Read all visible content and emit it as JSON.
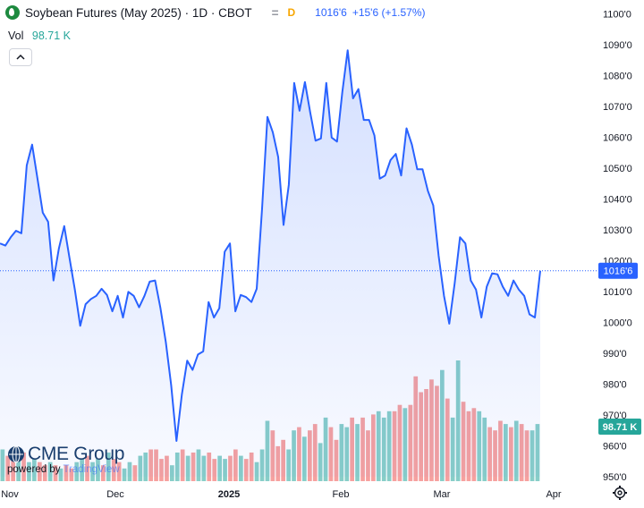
{
  "header": {
    "title": "Soybean Futures (May 2025) · 1D · CBOT",
    "dash": "=",
    "delay_badge": "D",
    "last_price": "1016'6",
    "change": "+15'6 (+1.57%)",
    "collapse_icon": "chevron-up-icon"
  },
  "volume": {
    "label": "Vol",
    "value": "98.71 K",
    "badge": "98.71 K"
  },
  "branding": {
    "logo_icon": "cme-globe-icon",
    "name": "CME Group",
    "powered_by": "powered by ",
    "tv_name": "TradingView",
    "settings_icon": "gear-icon"
  },
  "colors": {
    "line": "#2962ff",
    "fill": "#2962ff",
    "vol_up": "#26a69a",
    "vol_down": "#ef5350",
    "price_badge": "#2962ff",
    "vol_badge": "#26a69a"
  },
  "chart_data": {
    "type": "area",
    "x_tick_labels": [
      "Nov",
      "Dec",
      "2025",
      "Feb",
      "Mar",
      "Apr"
    ],
    "y_tick_labels": [
      "950'0",
      "960'0",
      "970'0",
      "980'0",
      "990'0",
      "1000'0",
      "1010'0",
      "1020'0",
      "1030'0",
      "1040'0",
      "1050'0",
      "1060'0",
      "1070'0",
      "1080'0",
      "1090'0",
      "1100'0"
    ],
    "y_ticks": [
      950,
      960,
      970,
      980,
      990,
      1000,
      1010,
      1020,
      1030,
      1040,
      1050,
      1060,
      1070,
      1080,
      1090,
      1100
    ],
    "ylim": [
      950,
      1101
    ],
    "current_price": 1016.75,
    "current_price_label": "1016'6",
    "grid": false,
    "series": [
      {
        "values": [
          1025.6,
          1024.9,
          1027.6,
          1029.7,
          1028.9,
          1050.9,
          1057.6,
          1046.6,
          1035.6,
          1032.6,
          1013.6,
          1023.9,
          1031.2,
          1020.9,
          1010.6,
          998.9,
          1005.9,
          1007.6,
          1008.6,
          1010.9,
          1008.9,
          1003.6,
          1008.6,
          1001.6,
          1009.9,
          1008.6,
          1004.9,
          1008.6,
          1013.2,
          1013.6,
          1004.6,
          993.6,
          979.6,
          961.6,
          976.6,
          987.6,
          984.6,
          989.6,
          990.6,
          1006.6,
          1001.6,
          1004.6,
          1022.9,
          1025.6,
          1003.6,
          1008.9,
          1008.2,
          1006.6,
          1010.9,
          1036.9,
          1066.6,
          1061.6,
          1053.6,
          1031.6,
          1044.6,
          1077.6,
          1068.6,
          1077.9,
          1067.9,
          1058.9,
          1059.6,
          1077.6,
          1059.9,
          1058.6,
          1074.6,
          1088.2,
          1072.6,
          1075.6,
          1065.6,
          1065.6,
          1060.6,
          1046.6,
          1047.6,
          1052.6,
          1054.6,
          1047.6,
          1062.9,
          1057.6,
          1049.6,
          1049.6,
          1042.6,
          1037.9,
          1021.6,
          1008.6,
          999.6,
          1012.6,
          1027.6,
          1025.6,
          1013.6,
          1010.6,
          1001.6,
          1011.6,
          1015.9,
          1015.6,
          1011.6,
          1008.6,
          1013.6,
          1010.6,
          1008.6,
          1002.6,
          1001.6,
          1016.75
        ]
      }
    ],
    "volume": {
      "values": [
        10,
        8,
        7,
        8,
        9,
        6,
        7,
        6,
        5,
        6,
        5,
        4,
        5,
        4,
        6,
        7,
        8,
        6,
        7,
        5,
        9,
        7,
        6,
        4,
        6,
        5,
        8,
        9,
        10,
        10,
        7,
        8,
        5,
        9,
        10,
        8,
        9,
        10,
        8,
        9,
        7,
        8,
        7,
        8,
        10,
        8,
        7,
        9,
        6,
        10,
        19,
        16,
        11,
        13,
        10,
        16,
        17,
        14,
        16,
        18,
        12,
        20,
        17,
        13,
        18,
        17,
        20,
        18,
        20,
        16,
        21,
        22,
        20,
        22,
        22,
        24,
        23,
        24,
        33,
        28,
        29,
        32,
        30,
        35,
        26,
        20,
        38,
        25,
        22,
        23,
        22,
        20,
        17,
        16,
        19,
        18,
        17,
        19,
        18,
        16,
        16,
        18
      ],
      "up": [
        1,
        0,
        0,
        1,
        0,
        1,
        1,
        0,
        0,
        1,
        0,
        1,
        0,
        0,
        1,
        1,
        0,
        1,
        1,
        0,
        1,
        0,
        0,
        1,
        1,
        0,
        1,
        1,
        0,
        0,
        0,
        0,
        1,
        1,
        0,
        1,
        0,
        1,
        1,
        0,
        0,
        1,
        1,
        0,
        0,
        1,
        0,
        0,
        1,
        1,
        1,
        0,
        0,
        0,
        1,
        1,
        0,
        1,
        0,
        0,
        1,
        1,
        0,
        0,
        1,
        1,
        0,
        1,
        0,
        0,
        0,
        1,
        1,
        1,
        0,
        0,
        1,
        0,
        0,
        0,
        0,
        0,
        0,
        1,
        0,
        1,
        1,
        0,
        0,
        0,
        1,
        1,
        0,
        0,
        0,
        1,
        0,
        1,
        0,
        0,
        1,
        1
      ]
    }
  }
}
